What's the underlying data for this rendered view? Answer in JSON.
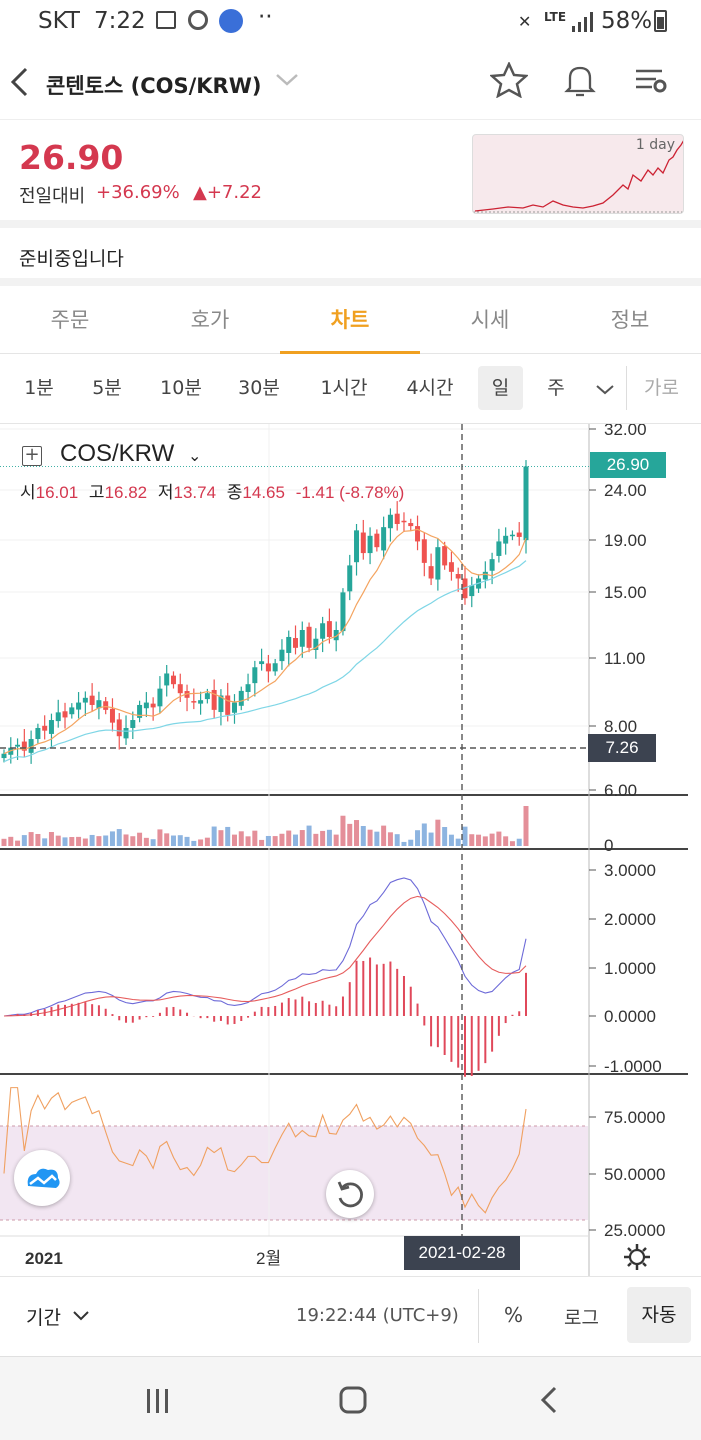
{
  "status": {
    "carrier": "SKT",
    "time": "7:22",
    "battery": "58%",
    "network": "LTE"
  },
  "header": {
    "title": "콘텐토스 (COS/KRW)"
  },
  "price": {
    "current": "26.90",
    "change_label": "전일대비",
    "change_pct": "+36.69%",
    "change_abs": "▲+7.22",
    "mini_chart_label": "1 day"
  },
  "notice": {
    "text": "준비중입니다"
  },
  "tabs": [
    {
      "label": "주문"
    },
    {
      "label": "호가"
    },
    {
      "label": "차트"
    },
    {
      "label": "시세"
    },
    {
      "label": "정보"
    }
  ],
  "intervals": [
    {
      "label": "1분"
    },
    {
      "label": "5분"
    },
    {
      "label": "10분"
    },
    {
      "label": "30분"
    },
    {
      "label": "1시간"
    },
    {
      "label": "4시간"
    },
    {
      "label": "일"
    },
    {
      "label": "주"
    },
    {
      "label": "가로"
    }
  ],
  "chart_header": {
    "symbol": "COS/KRW",
    "o_label": "시",
    "o": "16.01",
    "h_label": "고",
    "h": "16.82",
    "l_label": "저",
    "l": "13.74",
    "c_label": "종",
    "c": "14.65",
    "change": "-1.41 (-8.78%)",
    "last_price_tag": "26.90",
    "crosshair_price_tag": "7.26",
    "crosshair_date_tag": "2021-02-28"
  },
  "chart_data": {
    "type": "candlestick",
    "price_axis_ticks": [
      "32.00",
      "24.00",
      "19.00",
      "15.00",
      "11.00",
      "8.00",
      "6.00"
    ],
    "volume_axis_ticks": [
      "0"
    ],
    "macd_axis_ticks": [
      "3.0000",
      "2.0000",
      "1.0000",
      "0.0000",
      "-1.0000"
    ],
    "rsi_axis_ticks": [
      "75.0000",
      "50.0000",
      "25.0000"
    ],
    "x_labels": [
      "2021",
      "2월"
    ],
    "last_close": 26.9,
    "close_series": [
      7.1,
      7.3,
      7.4,
      7.2,
      7.6,
      8.0,
      7.9,
      8.3,
      8.6,
      8.4,
      8.8,
      9.0,
      9.2,
      8.9,
      9.1,
      8.7,
      8.2,
      7.7,
      8.0,
      8.3,
      8.9,
      9.0,
      8.8,
      9.6,
      10.3,
      9.8,
      9.4,
      9.2,
      9.0,
      9.1,
      9.4,
      8.7,
      9.3,
      8.5,
      9.0,
      9.5,
      9.8,
      10.6,
      10.9,
      10.4,
      10.8,
      11.5,
      12.2,
      11.6,
      12.6,
      11.6,
      12.1,
      13.0,
      12.2,
      12.6,
      15.0,
      17.0,
      20.0,
      18.0,
      19.5,
      18.5,
      20.3,
      21.5,
      20.6,
      20.9,
      20.4,
      19.0,
      17.2,
      16.0,
      18.5,
      17.0,
      16.5,
      16.0,
      14.6,
      15.5,
      16.0,
      16.5,
      17.5,
      19.0,
      19.5,
      19.6,
      19.4,
      26.9
    ],
    "macd_legend": [],
    "rsi_band": [
      30,
      70
    ]
  },
  "bottom": {
    "period_label": "기간",
    "clock": "19:22:44 (UTC+9)",
    "pct_label": "%",
    "log_label": "로그",
    "auto_label": "자동"
  }
}
